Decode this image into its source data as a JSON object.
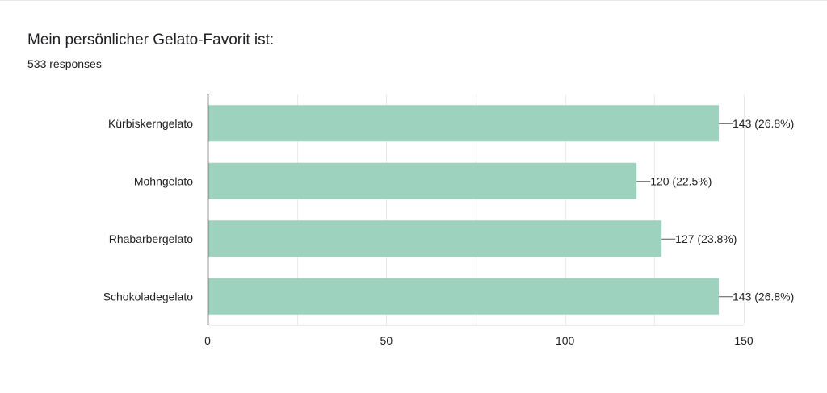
{
  "question": {
    "title": "Mein persönlicher Gelato-Favorit ist:",
    "responses": "533 responses"
  },
  "colors": {
    "bar": "#9dd2bf",
    "grid": "#ebebeb",
    "axis": "#333333",
    "leader": "#555555"
  },
  "chart_data": {
    "type": "bar",
    "orientation": "horizontal",
    "categories": [
      "Kürbiskerngelato",
      "Mohngelato",
      "Rhabarbergelato",
      "Schokoladegelato"
    ],
    "values": [
      143,
      120,
      127,
      143
    ],
    "value_labels": [
      "143 (26.8%)",
      "120 (22.5%)",
      "127 (23.8%)",
      "143 (26.8%)"
    ],
    "xlim": [
      0,
      150
    ],
    "xticks": [
      0,
      50,
      100,
      150
    ],
    "grid": true,
    "legend": "none"
  }
}
